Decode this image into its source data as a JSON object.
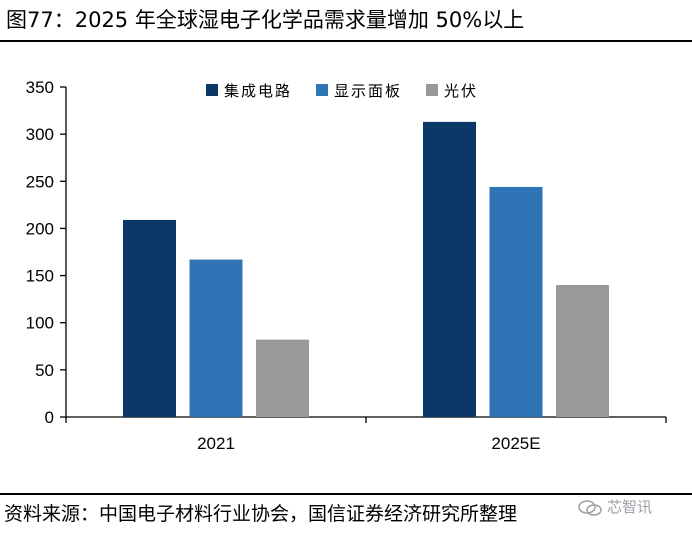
{
  "figure": {
    "title": "图77：2025 年全球湿电子化学品需求量增加 50%以上",
    "source": "资料来源：中国电子材料行业协会，国信证券经济研究所整理",
    "watermark": "芯智讯"
  },
  "chart_data": {
    "type": "bar",
    "categories": [
      "2021",
      "2025E"
    ],
    "series": [
      {
        "name": "集成电路",
        "values": [
          209,
          313
        ],
        "color": "#0b3866"
      },
      {
        "name": "显示面板",
        "values": [
          167,
          244
        ],
        "color": "#2f75b5"
      },
      {
        "name": "光伏",
        "values": [
          82,
          140
        ],
        "color": "#999999"
      }
    ],
    "ylim": [
      0,
      350
    ],
    "yticks": [
      0,
      50,
      100,
      150,
      200,
      250,
      300,
      350
    ],
    "grid": false,
    "legend_position": "top-center",
    "title": "",
    "xlabel": "",
    "ylabel": ""
  }
}
